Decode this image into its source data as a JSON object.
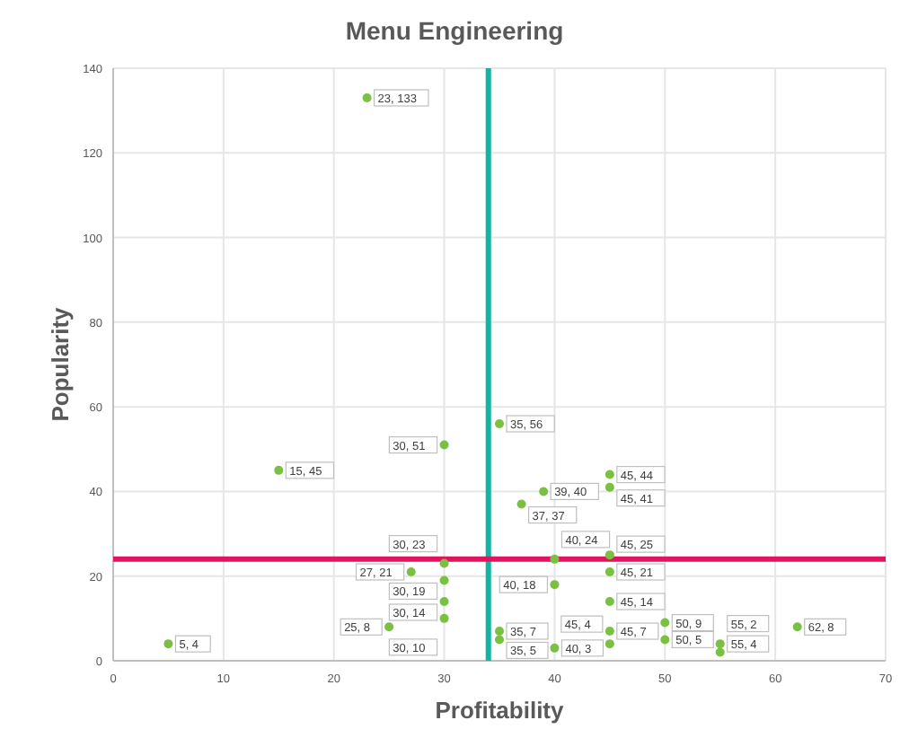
{
  "chart_data": {
    "type": "scatter",
    "title": "Menu Engineering",
    "xlabel": "Profitability",
    "ylabel": "Popularity",
    "x": [
      23,
      35,
      30,
      15,
      39,
      37,
      45,
      45,
      30,
      27,
      30,
      30,
      30,
      25,
      35,
      35,
      40,
      40,
      45,
      45,
      40,
      45,
      45,
      45,
      50,
      50,
      55,
      55,
      62,
      5
    ],
    "series": [
      {
        "color": "#7ac143",
        "values": [
          133,
          56,
          51,
          45,
          40,
          37,
          44,
          41,
          23,
          21,
          19,
          14,
          10,
          8,
          7,
          5,
          3,
          24,
          25,
          21,
          18,
          14,
          7,
          4,
          9,
          5,
          4,
          2,
          8,
          4
        ]
      }
    ],
    "xlim": [
      0,
      70
    ],
    "xticks": [
      0,
      10,
      20,
      30,
      40,
      50,
      60,
      70
    ],
    "ylim": [
      0,
      140
    ],
    "yticks": [
      0,
      20,
      40,
      60,
      80,
      100,
      120,
      140
    ],
    "value_labels": [
      "23, 133",
      "35, 56",
      "30, 51",
      "15, 45",
      "39, 40",
      "37, 37",
      "45, 44",
      "45, 41",
      "30, 23",
      "27, 21",
      "30, 19",
      "30, 14",
      "30, 10",
      "25, 8",
      "35, 7",
      "35, 5",
      "40, 3",
      "40, 24",
      "45, 25",
      "45, 21",
      "40, 18",
      "45, 14",
      "45, 7",
      "45, 4",
      "50, 9",
      "50, 5",
      "55, 4",
      "55, 2",
      "62, 8",
      "5, 4"
    ],
    "grid": true,
    "marker": "circle",
    "ref_lines": [
      {
        "axis": "x",
        "value": 34,
        "color": "#13b5a0"
      },
      {
        "axis": "y",
        "value": 24,
        "color": "#e0145f"
      }
    ]
  }
}
